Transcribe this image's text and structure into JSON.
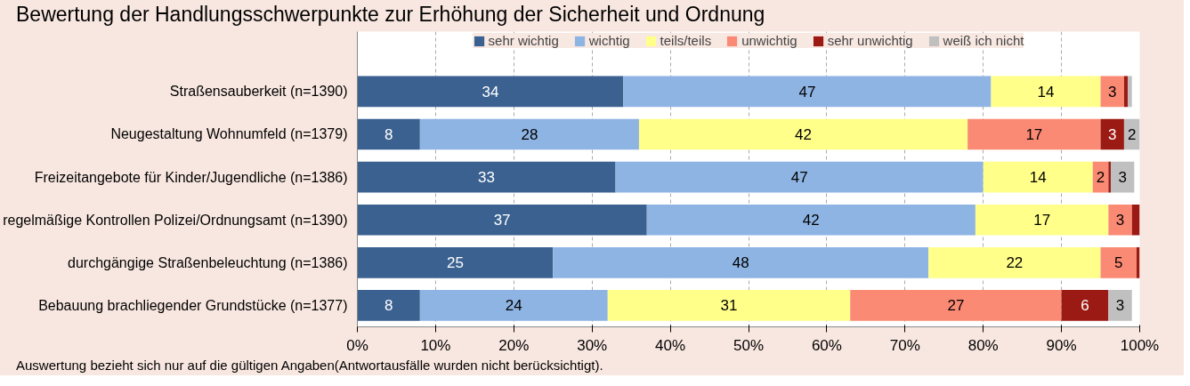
{
  "chart_data": {
    "type": "bar",
    "orientation": "horizontal",
    "stacked": true,
    "title": "Bewertung der Handlungsschwerpunkte zur Erhöhung der Sicherheit und Ordnung",
    "categories": [
      "Straßensauberkeit (n=1390)",
      "Neugestaltung Wohnumfeld (n=1379)",
      "Freizeitangebote für Kinder/Jugendliche (n=1386)",
      "regelmäßige Kontrollen Polizei/Ordnungsamt (n=1390)",
      "durchgängige Straßenbeleuchtung (n=1386)",
      "Bebauung brachliegender Grundstücke (n=1377)"
    ],
    "series": [
      {
        "name": "sehr wichtig",
        "color": "#3a6190",
        "values": [
          34,
          8,
          33,
          37,
          25,
          8
        ],
        "value_labels": [
          "34",
          "8",
          "33",
          "37",
          "25",
          "8"
        ]
      },
      {
        "name": "wichtig",
        "color": "#8eb4e3",
        "values": [
          47,
          28,
          47,
          42,
          48,
          24
        ],
        "value_labels": [
          "47",
          "28",
          "47",
          "42",
          "48",
          "24"
        ]
      },
      {
        "name": "teils/teils",
        "color": "#ffff8a",
        "values": [
          14,
          42,
          14,
          17,
          22,
          31
        ],
        "value_labels": [
          "14",
          "42",
          "14",
          "17",
          "22",
          "31"
        ]
      },
      {
        "name": "unwichtig",
        "color": "#fa8a74",
        "values": [
          3,
          17,
          2,
          3,
          4.6,
          27
        ],
        "value_labels": [
          "3",
          "17",
          "2",
          "3",
          "5",
          "27"
        ]
      },
      {
        "name": "sehr unwichtig",
        "color": "#9b1b14",
        "values": [
          0.5,
          3,
          0.3,
          1,
          0.4,
          6
        ],
        "value_labels": [
          null,
          "3",
          null,
          null,
          null,
          "6"
        ]
      },
      {
        "name": "weiß ich nicht",
        "color": "#c0c0c0",
        "values": [
          0.5,
          2,
          3,
          0,
          0,
          3
        ],
        "value_labels": [
          null,
          "2",
          "3",
          null,
          null,
          "3"
        ]
      }
    ],
    "xlim": [
      0,
      100
    ],
    "xticks": [
      {
        "value": 0,
        "label": "0%"
      },
      {
        "value": 10,
        "label": "10%"
      },
      {
        "value": 20,
        "label": "20%"
      },
      {
        "value": 30,
        "label": "30%"
      },
      {
        "value": 40,
        "label": "40%"
      },
      {
        "value": 50,
        "label": "50%"
      },
      {
        "value": 60,
        "label": "60%"
      },
      {
        "value": 70,
        "label": "70%"
      },
      {
        "value": 80,
        "label": "80%"
      },
      {
        "value": 90,
        "label": "90%"
      },
      {
        "value": 100,
        "label": "100%"
      }
    ],
    "grid": "x",
    "legend": "top",
    "annotations": [
      "Auswertung bezieht sich nur auf die gültigen Angaben(Antwortausfälle wurden nicht berücksichtigt)."
    ]
  }
}
